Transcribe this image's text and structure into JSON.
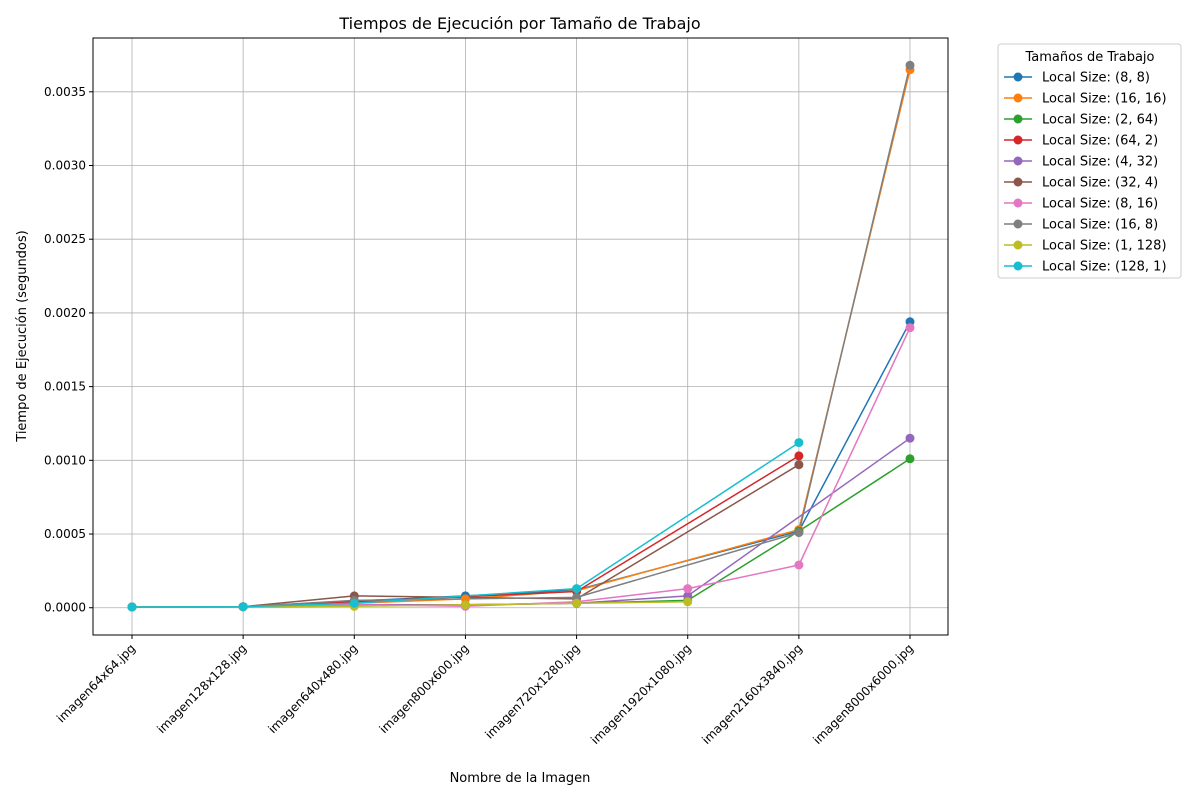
{
  "chart_data": {
    "type": "line",
    "title": "Tiempos de Ejecución por Tamaño de Trabajo",
    "xlabel": "Nombre de la Imagen",
    "ylabel": "Tiempo de Ejecución (segundos)",
    "categories": [
      "imagen64x64.jpg",
      "imagen128x128.jpg",
      "imagen640x480.jpg",
      "imagen800x600.jpg",
      "imagen720x1280.jpg",
      "imagen1920x1080.jpg",
      "imagen2160x3840.jpg",
      "imagen8000x6000.jpg"
    ],
    "ylim": [
      -0.000185,
      0.003865
    ],
    "yticks": [
      0.0,
      0.0005,
      0.001,
      0.0015,
      0.002,
      0.0025,
      0.003,
      0.0035
    ],
    "ytick_labels": [
      "0.0000",
      "0.0005",
      "0.0010",
      "0.0015",
      "0.0020",
      "0.0025",
      "0.0030",
      "0.0035"
    ],
    "grid": true,
    "legend": {
      "title": "Tamaños de Trabajo",
      "placement": "outside-top-right"
    },
    "series": [
      {
        "name": "Local Size: (8, 8)",
        "color": "#1f77b4",
        "values": [
          5e-06,
          7e-06,
          4.5e-05,
          8e-05,
          0.00012,
          null,
          0.00052,
          0.00194
        ]
      },
      {
        "name": "Local Size: (16, 16)",
        "color": "#ff7f0e",
        "values": [
          5e-06,
          7e-06,
          3e-05,
          6e-05,
          0.000115,
          null,
          0.00053,
          0.00365
        ]
      },
      {
        "name": "Local Size: (2, 64)",
        "color": "#2ca02c",
        "values": [
          5e-06,
          7e-06,
          1.5e-05,
          2e-05,
          3e-05,
          5e-05,
          0.00052,
          0.00101
        ]
      },
      {
        "name": "Local Size: (64, 2)",
        "color": "#d62728",
        "values": [
          5e-06,
          7e-06,
          4e-05,
          null,
          0.00011,
          null,
          0.00103,
          null
        ]
      },
      {
        "name": "Local Size: (4, 32)",
        "color": "#9467bd",
        "values": [
          5e-06,
          7e-06,
          2e-05,
          2e-05,
          3e-05,
          8e-05,
          null,
          0.00115
        ]
      },
      {
        "name": "Local Size: (32, 4)",
        "color": "#8c564b",
        "values": [
          5e-06,
          7e-06,
          8e-05,
          null,
          6e-05,
          null,
          0.00097,
          null
        ]
      },
      {
        "name": "Local Size: (8, 16)",
        "color": "#e377c2",
        "values": [
          5e-06,
          7e-06,
          2e-05,
          1e-05,
          4e-05,
          0.00013,
          0.00029,
          0.0019
        ]
      },
      {
        "name": "Local Size: (16, 8)",
        "color": "#7f7f7f",
        "values": [
          5e-06,
          7e-06,
          5e-05,
          null,
          7e-05,
          null,
          0.00051,
          0.00368
        ]
      },
      {
        "name": "Local Size: (1, 128)",
        "color": "#bcbd22",
        "values": [
          5e-06,
          5e-06,
          1e-05,
          2e-05,
          3e-05,
          4e-05,
          null,
          null
        ]
      },
      {
        "name": "Local Size: (128, 1)",
        "color": "#17becf",
        "values": [
          5e-06,
          7e-06,
          3e-05,
          null,
          0.00013,
          null,
          0.00112,
          null
        ]
      }
    ]
  }
}
